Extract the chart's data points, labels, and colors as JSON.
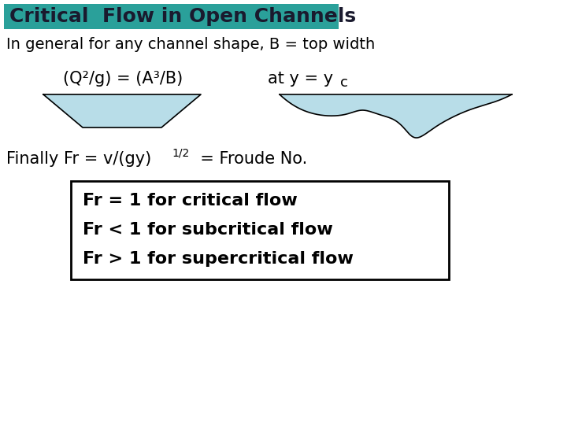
{
  "title": "Critical  Flow in Open Channels",
  "title_bg_color": "#2aa09a",
  "title_text_color": "#1a1a2e",
  "bg_color": "#ffffff",
  "line1": "In general for any channel shape, B = top width",
  "box_lines": [
    "Fr = 1 for critical flow",
    "Fr < 1 for subcritical flow",
    "Fr > 1 for supercritical flow"
  ],
  "channel_fill": "#b8dde8",
  "channel_line_color": "#000000",
  "font_size_title": 18,
  "font_size_body": 14,
  "font_size_eq": 15,
  "font_size_box": 14,
  "font_size_super": 10
}
